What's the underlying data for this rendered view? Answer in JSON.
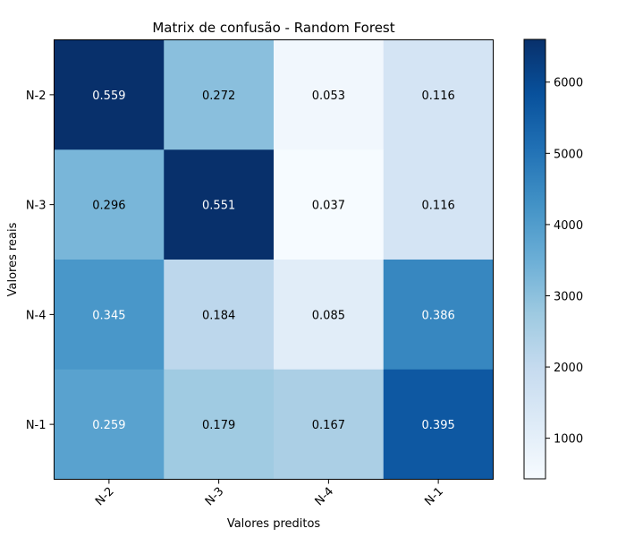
{
  "chart_data": {
    "type": "heatmap",
    "title": "Matrix de confusão - Random Forest",
    "xlabel": "Valores preditos",
    "ylabel": "Valores reais",
    "x_categories": [
      "N-2",
      "N-3",
      "N-4",
      "N-1"
    ],
    "y_categories": [
      "N-2",
      "N-3",
      "N-4",
      "N-1"
    ],
    "cell_labels": [
      [
        "0.559",
        "0.272",
        "0.053",
        "0.116"
      ],
      [
        "0.296",
        "0.551",
        "0.037",
        "0.116"
      ],
      [
        "0.345",
        "0.184",
        "0.085",
        "0.386"
      ],
      [
        "0.259",
        "0.179",
        "0.167",
        "0.395"
      ]
    ],
    "color_values": [
      [
        6600,
        3050,
        600,
        1520
      ],
      [
        3300,
        6600,
        450,
        1520
      ],
      [
        4150,
        2150,
        1100,
        4550
      ],
      [
        3850,
        2700,
        2500,
        5650
      ]
    ],
    "colorbar": {
      "ticks": [
        1000,
        2000,
        3000,
        4000,
        5000,
        6000
      ],
      "range": [
        430,
        6600
      ],
      "colormap": "Blues"
    },
    "x_tick_rotation_deg": 45
  }
}
